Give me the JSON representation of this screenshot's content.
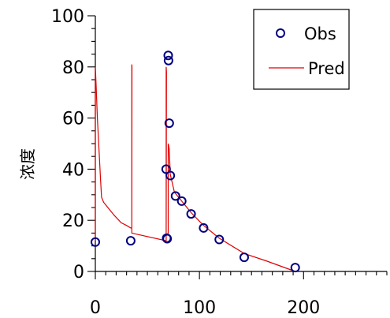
{
  "chart_data": {
    "type": "scatter",
    "ylabel": "浓度",
    "xlabel": "",
    "title": "",
    "xlim": [
      0,
      280
    ],
    "ylim": [
      0,
      100
    ],
    "x_ticks": [
      0,
      100,
      200
    ],
    "y_ticks": [
      0,
      20,
      40,
      60,
      80,
      100
    ],
    "x_minor_step": 10,
    "y_minor_step": 5,
    "legend": {
      "position": "top-right",
      "entries": [
        "Obs",
        "Pred"
      ]
    },
    "colors": {
      "obs": "#000080",
      "pred": "#e00000"
    },
    "series": [
      {
        "name": "Obs",
        "kind": "markers",
        "points": [
          [
            0,
            11.5
          ],
          [
            34,
            12
          ],
          [
            68,
            40
          ],
          [
            68.5,
            13
          ],
          [
            69,
            12.8
          ],
          [
            70,
            84.5
          ],
          [
            70.3,
            82.5
          ],
          [
            71,
            58
          ],
          [
            72,
            37.5
          ],
          [
            77,
            29.5
          ],
          [
            83,
            27.5
          ],
          [
            92,
            22.5
          ],
          [
            104,
            17
          ],
          [
            119,
            12.5
          ],
          [
            143,
            5.5
          ],
          [
            192,
            1.5
          ]
        ]
      },
      {
        "name": "Pred",
        "kind": "line",
        "points": [
          [
            0,
            12
          ],
          [
            0,
            80
          ],
          [
            0.8,
            72
          ],
          [
            2,
            60
          ],
          [
            3.5,
            48
          ],
          [
            5,
            36
          ],
          [
            6,
            29
          ],
          [
            8,
            27
          ],
          [
            12,
            25
          ],
          [
            18,
            22
          ],
          [
            25,
            19
          ],
          [
            30,
            18
          ],
          [
            34,
            17
          ],
          [
            35,
            17
          ],
          [
            35,
            81
          ],
          [
            35.2,
            80
          ],
          [
            35,
            15
          ],
          [
            68,
            12
          ],
          [
            68,
            80
          ],
          [
            68.3,
            78
          ],
          [
            68,
            14
          ],
          [
            70,
            15
          ],
          [
            70,
            50
          ],
          [
            71,
            48
          ],
          [
            72,
            38
          ],
          [
            76,
            31
          ],
          [
            82,
            28
          ],
          [
            92,
            23
          ],
          [
            104,
            18
          ],
          [
            119,
            13
          ],
          [
            143,
            7
          ],
          [
            165,
            4
          ],
          [
            192,
            0
          ]
        ]
      }
    ]
  }
}
